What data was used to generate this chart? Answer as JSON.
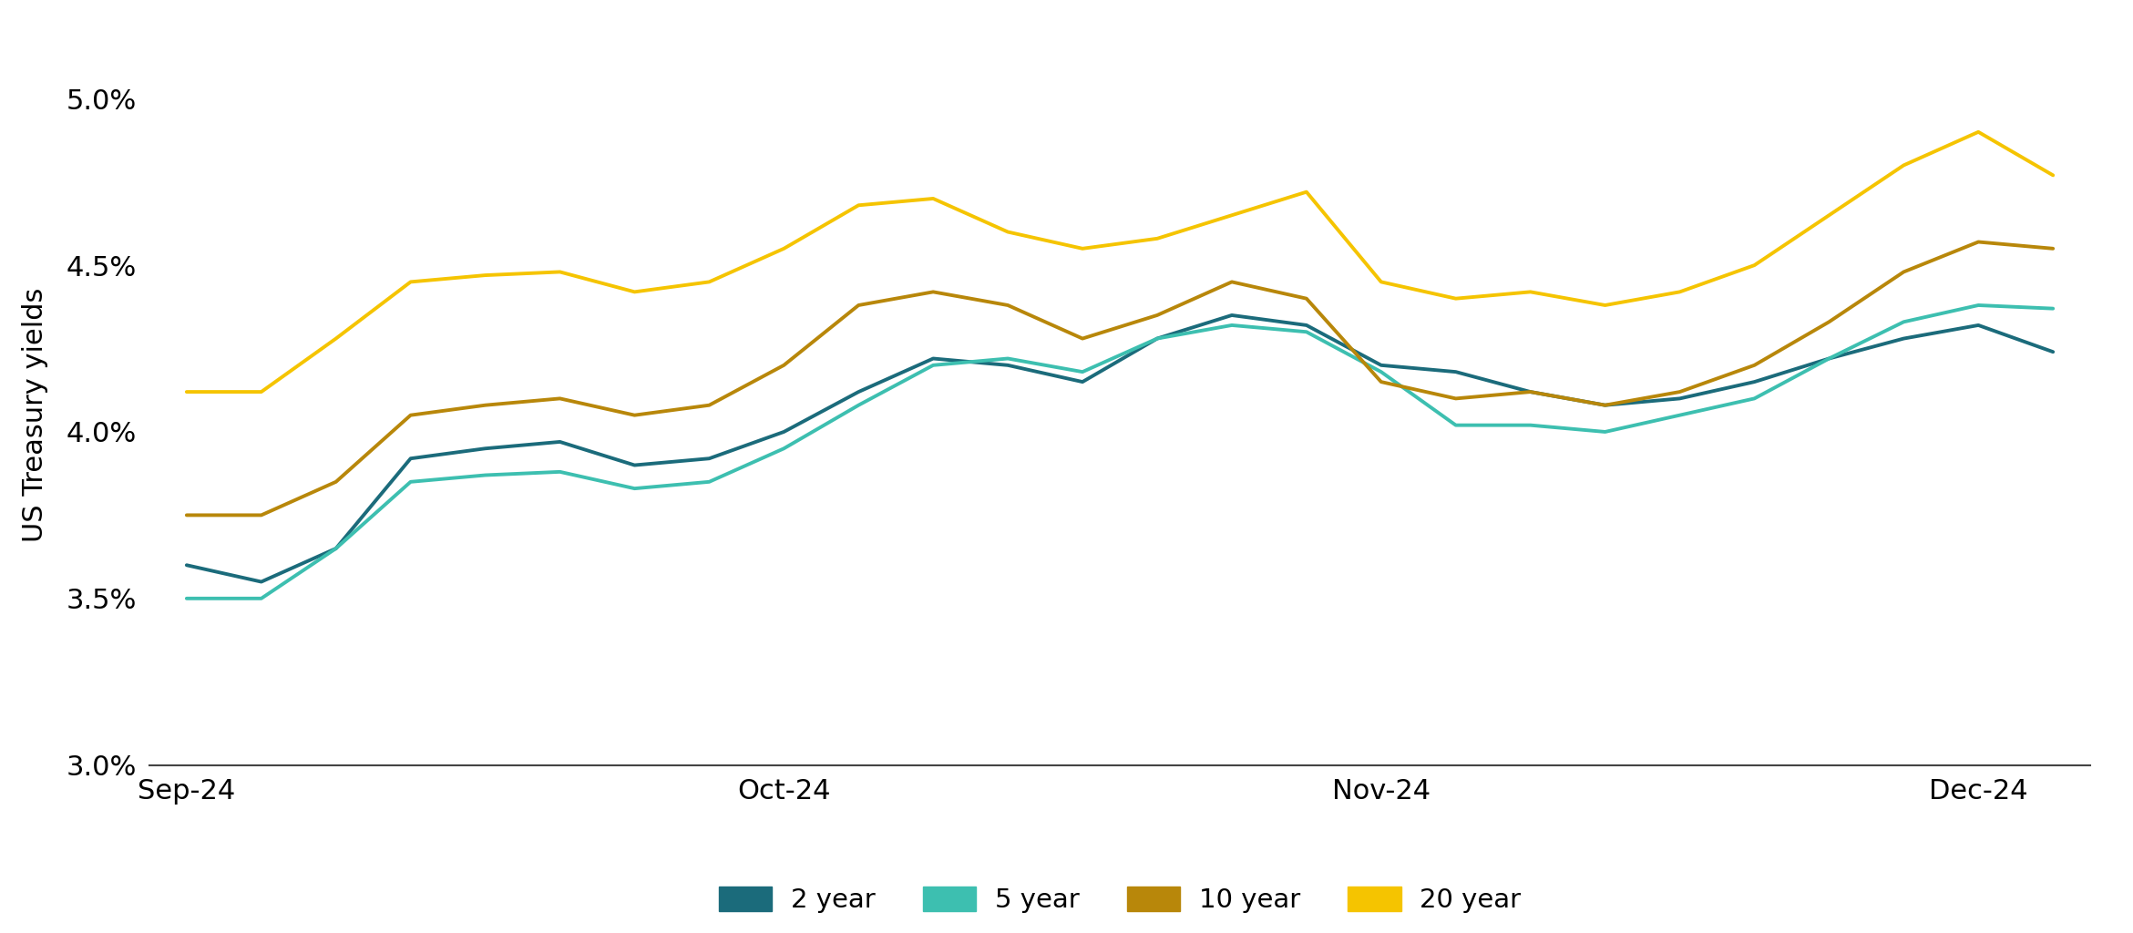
{
  "ylabel": "US Treasury yields",
  "ylim": [
    3.0,
    5.1
  ],
  "yticks": [
    3.0,
    3.5,
    4.0,
    4.5,
    5.0
  ],
  "ytick_labels": [
    "3.0%",
    "3.5%",
    "4.0%",
    "4.5%",
    "5.0%"
  ],
  "background_color": "#ffffff",
  "top_bar_color": "#0a0a0a",
  "bottom_bar_color": "#0a0a0a",
  "series": {
    "2 year": {
      "color": "#1b6b7b",
      "values": [
        3.6,
        3.55,
        3.65,
        3.92,
        3.95,
        3.97,
        3.9,
        3.92,
        4.0,
        4.12,
        4.22,
        4.2,
        4.15,
        4.28,
        4.35,
        4.32,
        4.2,
        4.18,
        4.12,
        4.08,
        4.1,
        4.15,
        4.22,
        4.28,
        4.32,
        4.24
      ]
    },
    "5 year": {
      "color": "#3dbfb0",
      "values": [
        3.5,
        3.5,
        3.65,
        3.85,
        3.87,
        3.88,
        3.83,
        3.85,
        3.95,
        4.08,
        4.2,
        4.22,
        4.18,
        4.28,
        4.32,
        4.3,
        4.18,
        4.02,
        4.02,
        4.0,
        4.05,
        4.1,
        4.22,
        4.33,
        4.38,
        4.37
      ]
    },
    "10 year": {
      "color": "#b8870a",
      "values": [
        3.75,
        3.75,
        3.85,
        4.05,
        4.08,
        4.1,
        4.05,
        4.08,
        4.2,
        4.38,
        4.42,
        4.38,
        4.28,
        4.35,
        4.45,
        4.4,
        4.15,
        4.1,
        4.12,
        4.08,
        4.12,
        4.2,
        4.33,
        4.48,
        4.57,
        4.55
      ]
    },
    "20 year": {
      "color": "#f5c400",
      "values": [
        4.12,
        4.12,
        4.28,
        4.45,
        4.47,
        4.48,
        4.42,
        4.45,
        4.55,
        4.68,
        4.7,
        4.6,
        4.55,
        4.58,
        4.65,
        4.72,
        4.45,
        4.4,
        4.42,
        4.38,
        4.42,
        4.5,
        4.65,
        4.8,
        4.9,
        4.77
      ]
    }
  },
  "x_tick_positions": [
    0,
    8,
    16,
    24
  ],
  "x_tick_labels": [
    "Sep-24",
    "Oct-24",
    "Nov-24",
    "Dec-24"
  ],
  "legend_labels": [
    "2 year",
    "5 year",
    "10 year",
    "20 year"
  ],
  "legend_colors": [
    "#1b6b7b",
    "#3dbfb0",
    "#b8870a",
    "#f5c400"
  ],
  "line_width": 2.8,
  "font_family": "DejaVu Sans",
  "tick_fontsize": 22,
  "ylabel_fontsize": 22,
  "legend_fontsize": 21
}
